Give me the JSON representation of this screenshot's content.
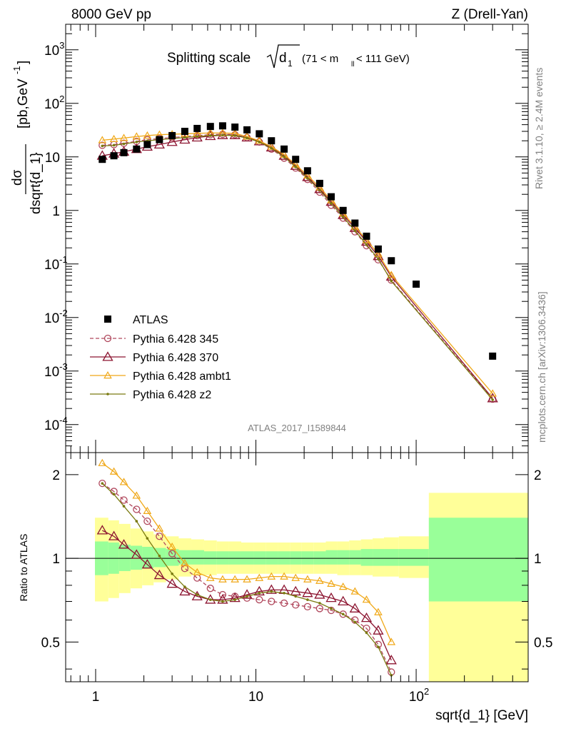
{
  "header": {
    "left": "8000 GeV pp",
    "right": "Z (Drell-Yan)"
  },
  "side_labels": {
    "rivet": "Rivet 3.1.10, ≥ 2.4M events",
    "mcplots": "mcplots.cern.ch [arXiv:1306.3436]"
  },
  "main_title": {
    "prefix": "Splitting scale",
    "symbol": "d",
    "symbol_sub": "1",
    "range_pre": "(71 < m",
    "range_sub": "ll",
    "range_post": " < 111 GeV)"
  },
  "watermark": "ATLAS_2017_I1589844",
  "y_label_main": {
    "numer": "dσ",
    "denom": "dsqrt{d_1}",
    "units": "[pb,GeV",
    "units_sup": "-1",
    "units_close": "]"
  },
  "y_label_ratio": "Ratio to ATLAS",
  "x_label": "sqrt{d_1} [GeV]",
  "x_ticks": [
    {
      "v": 1,
      "base": "1",
      "sup": ""
    },
    {
      "v": 10,
      "base": "10",
      "sup": ""
    },
    {
      "v": 100,
      "base": "10",
      "sup": "2"
    }
  ],
  "y_ticks_main": [
    {
      "v": 0.0001,
      "base": "10",
      "sup": "-4"
    },
    {
      "v": 0.001,
      "base": "10",
      "sup": "-3"
    },
    {
      "v": 0.01,
      "base": "10",
      "sup": "-2"
    },
    {
      "v": 0.1,
      "base": "10",
      "sup": "-1"
    },
    {
      "v": 1,
      "base": "1",
      "sup": ""
    },
    {
      "v": 10,
      "base": "10",
      "sup": ""
    },
    {
      "v": 100,
      "base": "10",
      "sup": "2"
    },
    {
      "v": 1000,
      "base": "10",
      "sup": "3"
    }
  ],
  "y_ticks_ratio": [
    {
      "v": 0.5,
      "label": "0.5"
    },
    {
      "v": 1,
      "label": "1"
    },
    {
      "v": 2,
      "label": "2"
    }
  ],
  "colors": {
    "atlas": "#000000",
    "p345": "#b0475c",
    "p370": "#8c1430",
    "ambt1": "#f0a818",
    "z2": "#7a7a10",
    "band_inner": "#99ff99",
    "band_outer": "#ffff99"
  },
  "chart_data": {
    "type": "scatter",
    "x_scale": "log",
    "y_scale": "log",
    "xlim": [
      0.65,
      500
    ],
    "ylim_main": [
      3e-05,
      3000
    ],
    "ylim_ratio": [
      0.36,
      2.4
    ],
    "ratio_y_scale": "log",
    "legend_position": "lower-left",
    "legend": [
      {
        "key": "atlas",
        "label": "ATLAS",
        "style": "square"
      },
      {
        "key": "p345",
        "label": "Pythia 6.428 345",
        "style": "circle-dashed"
      },
      {
        "key": "p370",
        "label": "Pythia 6.428 370",
        "style": "triangle"
      },
      {
        "key": "ambt1",
        "label": "Pythia 6.428 ambt1",
        "style": "triangle"
      },
      {
        "key": "z2",
        "label": "Pythia 6.428 z2",
        "style": "dot"
      }
    ],
    "atlas": {
      "x": [
        1.1,
        1.3,
        1.5,
        1.8,
        2.1,
        2.5,
        3.0,
        3.6,
        4.3,
        5.2,
        6.2,
        7.4,
        8.8,
        10.5,
        12.5,
        15.0,
        17.7,
        21.0,
        25.0,
        29.5,
        35.0,
        41.5,
        49.0,
        58.0,
        70.0,
        100.0,
        300.0
      ],
      "y": [
        9,
        10.5,
        12,
        14,
        17,
        21,
        25,
        30,
        34,
        37,
        38,
        36,
        32,
        27,
        20,
        14,
        9,
        5.5,
        3.2,
        1.8,
        1.0,
        0.58,
        0.33,
        0.19,
        0.115,
        0.042,
        0.0019
      ]
    },
    "ratio_x": [
      1.1,
      1.3,
      1.5,
      1.8,
      2.1,
      2.5,
      3.0,
      3.6,
      4.3,
      5.2,
      6.2,
      7.4,
      8.8,
      10.5,
      12.5,
      15.0,
      17.7,
      21.0,
      25.0,
      29.5,
      35.0,
      41.5,
      49.0,
      58.0,
      70.0
    ],
    "series": [
      {
        "key": "p345",
        "name": "Pythia 6.428 345",
        "x": [
          1.1,
          1.3,
          1.5,
          1.8,
          2.1,
          2.5,
          3.0,
          3.6,
          4.3,
          5.2,
          6.2,
          7.4,
          8.8,
          10.5,
          12.5,
          15.0,
          17.7,
          21.0,
          25.0,
          29.5,
          35.0,
          41.5,
          49.0,
          58.0,
          70.0,
          300.0
        ],
        "y": [
          16.5,
          17,
          18,
          19.5,
          21,
          22,
          23,
          24,
          25,
          26,
          26.5,
          26,
          23,
          19,
          14,
          9.5,
          6.2,
          3.8,
          2.2,
          1.25,
          0.72,
          0.4,
          0.22,
          0.12,
          0.05,
          0.0003
        ],
        "ratio": [
          1.86,
          1.74,
          1.62,
          1.5,
          1.36,
          1.2,
          1.04,
          0.92,
          0.85,
          0.78,
          0.74,
          0.73,
          0.72,
          0.71,
          0.7,
          0.69,
          0.68,
          0.67,
          0.66,
          0.65,
          0.63,
          0.6,
          0.56,
          0.49,
          0.39
        ]
      },
      {
        "key": "p370",
        "name": "Pythia 6.428 370",
        "x": [
          1.1,
          1.3,
          1.5,
          1.8,
          2.1,
          2.5,
          3.0,
          3.6,
          4.3,
          5.2,
          6.2,
          7.4,
          8.8,
          10.5,
          12.5,
          15.0,
          17.7,
          21.0,
          25.0,
          29.5,
          35.0,
          41.5,
          49.0,
          58.0,
          70.0,
          300.0
        ],
        "y": [
          10.5,
          11.5,
          12.5,
          14,
          15.5,
          17,
          19,
          21,
          23,
          24.5,
          25.5,
          25.5,
          23,
          19.5,
          15,
          10.5,
          6.8,
          4.2,
          2.5,
          1.45,
          0.82,
          0.47,
          0.26,
          0.14,
          0.058,
          0.00031
        ],
        "ratio": [
          1.26,
          1.2,
          1.12,
          1.03,
          0.95,
          0.87,
          0.81,
          0.76,
          0.73,
          0.71,
          0.71,
          0.72,
          0.74,
          0.76,
          0.77,
          0.77,
          0.76,
          0.75,
          0.74,
          0.72,
          0.7,
          0.66,
          0.61,
          0.55,
          0.43
        ]
      },
      {
        "key": "ambt1",
        "name": "Pythia 6.428 ambt1",
        "x": [
          1.1,
          1.3,
          1.5,
          1.8,
          2.1,
          2.5,
          3.0,
          3.6,
          4.3,
          5.2,
          6.2,
          7.4,
          8.8,
          10.5,
          12.5,
          15.0,
          17.7,
          21.0,
          25.0,
          29.5,
          35.0,
          41.5,
          49.0,
          58.0,
          70.0,
          300.0
        ],
        "y": [
          20.5,
          21.5,
          22.5,
          24,
          25,
          26,
          26.5,
          27,
          27.5,
          28,
          28,
          27.5,
          24,
          20,
          15.5,
          11,
          7.2,
          4.5,
          2.7,
          1.55,
          0.88,
          0.5,
          0.28,
          0.155,
          0.062,
          0.00038
        ],
        "ratio": [
          2.2,
          2.05,
          1.88,
          1.68,
          1.48,
          1.28,
          1.1,
          0.96,
          0.89,
          0.85,
          0.84,
          0.84,
          0.84,
          0.85,
          0.86,
          0.86,
          0.85,
          0.84,
          0.83,
          0.81,
          0.79,
          0.76,
          0.71,
          0.64,
          0.5
        ]
      },
      {
        "key": "z2",
        "name": "Pythia 6.428 z2",
        "x": [
          1.1,
          1.3,
          1.5,
          1.8,
          2.1,
          2.5,
          3.0,
          3.6,
          4.3,
          5.2,
          6.2,
          7.4,
          8.8,
          10.5,
          12.5,
          15.0,
          17.7,
          21.0,
          25.0,
          29.5,
          35.0,
          41.5,
          49.0,
          58.0,
          70.0,
          300.0
        ],
        "y": [
          16,
          16.5,
          17.5,
          19,
          20,
          21,
          22,
          23,
          24,
          25,
          25.5,
          25,
          22.5,
          19,
          14.5,
          10,
          6.5,
          4,
          2.4,
          1.35,
          0.76,
          0.42,
          0.23,
          0.125,
          0.048,
          0.00029
        ],
        "ratio": [
          1.86,
          1.7,
          1.54,
          1.36,
          1.18,
          1.02,
          0.88,
          0.79,
          0.74,
          0.71,
          0.7,
          0.71,
          0.73,
          0.75,
          0.76,
          0.75,
          0.73,
          0.71,
          0.69,
          0.66,
          0.63,
          0.59,
          0.54,
          0.48,
          0.38
        ]
      }
    ],
    "uncertainty_bands": {
      "edges": [
        0.99,
        1.2,
        1.4,
        1.65,
        1.95,
        2.3,
        2.75,
        3.3,
        3.95,
        4.75,
        5.7,
        6.8,
        8.1,
        9.7,
        11.5,
        13.8,
        16.3,
        19.3,
        23,
        27.3,
        32.2,
        38.2,
        45.2,
        53.5,
        63,
        78,
        120,
        500
      ],
      "inner": [
        [
          0.87,
          1.15
        ],
        [
          0.88,
          1.14
        ],
        [
          0.9,
          1.12
        ],
        [
          0.91,
          1.11
        ],
        [
          0.92,
          1.1
        ],
        [
          0.93,
          1.09
        ],
        [
          0.94,
          1.08
        ],
        [
          0.95,
          1.07
        ],
        [
          0.95,
          1.07
        ],
        [
          0.95,
          1.06
        ],
        [
          0.95,
          1.06
        ],
        [
          0.95,
          1.06
        ],
        [
          0.95,
          1.06
        ],
        [
          0.95,
          1.06
        ],
        [
          0.95,
          1.06
        ],
        [
          0.95,
          1.06
        ],
        [
          0.95,
          1.06
        ],
        [
          0.95,
          1.06
        ],
        [
          0.95,
          1.06
        ],
        [
          0.95,
          1.07
        ],
        [
          0.95,
          1.07
        ],
        [
          0.95,
          1.07
        ],
        [
          0.94,
          1.08
        ],
        [
          0.94,
          1.08
        ],
        [
          0.94,
          1.08
        ],
        [
          0.94,
          1.08
        ],
        [
          0.7,
          1.4
        ]
      ],
      "outer": [
        [
          0.7,
          1.4
        ],
        [
          0.72,
          1.37
        ],
        [
          0.75,
          1.33
        ],
        [
          0.78,
          1.28
        ],
        [
          0.8,
          1.25
        ],
        [
          0.82,
          1.22
        ],
        [
          0.84,
          1.2
        ],
        [
          0.86,
          1.18
        ],
        [
          0.87,
          1.17
        ],
        [
          0.87,
          1.16
        ],
        [
          0.88,
          1.15
        ],
        [
          0.88,
          1.15
        ],
        [
          0.88,
          1.14
        ],
        [
          0.88,
          1.14
        ],
        [
          0.88,
          1.14
        ],
        [
          0.88,
          1.14
        ],
        [
          0.88,
          1.14
        ],
        [
          0.88,
          1.14
        ],
        [
          0.88,
          1.14
        ],
        [
          0.88,
          1.15
        ],
        [
          0.87,
          1.15
        ],
        [
          0.87,
          1.16
        ],
        [
          0.87,
          1.17
        ],
        [
          0.86,
          1.18
        ],
        [
          0.86,
          1.19
        ],
        [
          0.85,
          1.2
        ],
        [
          0.36,
          1.72
        ]
      ]
    }
  }
}
